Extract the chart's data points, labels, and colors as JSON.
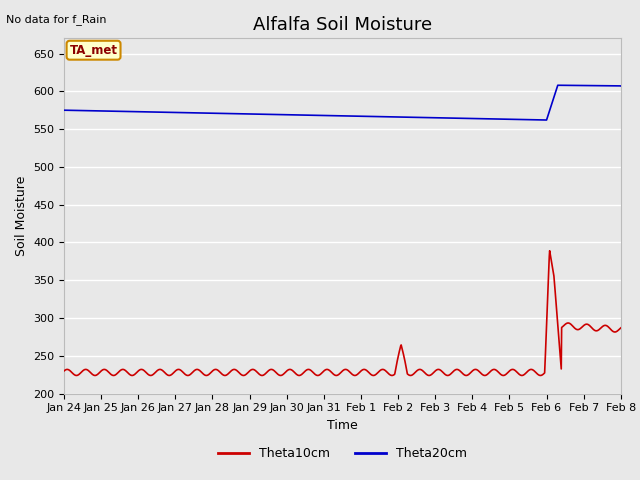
{
  "title": "Alfalfa Soil Moisture",
  "subtitle": "No data for f_Rain",
  "xlabel": "Time",
  "ylabel": "Soil Moisture",
  "ylim": [
    200,
    670
  ],
  "yticks": [
    200,
    250,
    300,
    350,
    400,
    450,
    500,
    550,
    600,
    650
  ],
  "bg_color": "#e8e8e8",
  "theta10_color": "#cc0000",
  "theta20_color": "#0000cc",
  "legend_label_10": "Theta10cm",
  "legend_label_20": "Theta20cm",
  "ta_met_label": "TA_met",
  "x_tick_labels": [
    "Jan 24",
    "Jan 25",
    "Jan 26",
    "Jan 27",
    "Jan 28",
    "Jan 29",
    "Jan 30",
    "Jan 31",
    "Feb 1",
    "Feb 2",
    "Feb 3",
    "Feb 4",
    "Feb 5",
    "Feb 6",
    "Feb 7",
    "Feb 8"
  ],
  "title_fontsize": 13,
  "axis_fontsize": 9,
  "tick_fontsize": 8,
  "legend_fontsize": 9
}
